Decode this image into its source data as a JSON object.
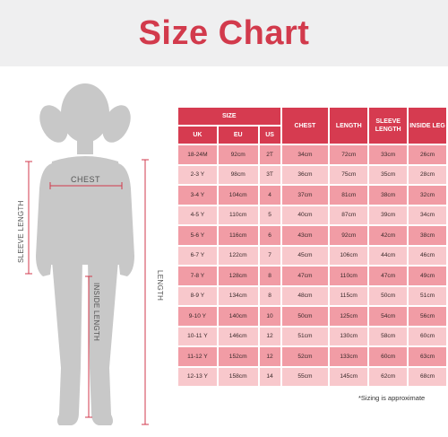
{
  "title": "Size Chart",
  "figure_labels": {
    "sleeve_length": "SLEEVE LENGTH",
    "chest": "CHEST",
    "inside_length": "INSIDE LENGTH",
    "length": "LENGTH"
  },
  "table": {
    "size_header": "SIZE",
    "sub_headers": [
      "UK",
      "EU",
      "US"
    ],
    "measure_headers": [
      "CHEST",
      "LENGTH",
      "SLEEVE LENGTH",
      "INSIDE LEG"
    ],
    "rows": [
      [
        "18-24M",
        "92cm",
        "2T",
        "34cm",
        "72cm",
        "33cm",
        "26cm"
      ],
      [
        "2-3 Y",
        "98cm",
        "3T",
        "36cm",
        "75cm",
        "35cm",
        "28cm"
      ],
      [
        "3-4 Y",
        "104cm",
        "4",
        "37cm",
        "81cm",
        "38cm",
        "32cm"
      ],
      [
        "4-5 Y",
        "110cm",
        "5",
        "40cm",
        "87cm",
        "39cm",
        "34cm"
      ],
      [
        "5-6 Y",
        "116cm",
        "6",
        "43cm",
        "92cm",
        "42cm",
        "38cm"
      ],
      [
        "6-7 Y",
        "122cm",
        "7",
        "45cm",
        "106cm",
        "44cm",
        "46cm"
      ],
      [
        "7-8 Y",
        "128cm",
        "8",
        "47cm",
        "110cm",
        "47cm",
        "49cm"
      ],
      [
        "8-9 Y",
        "134cm",
        "8",
        "48cm",
        "115cm",
        "50cm",
        "51cm"
      ],
      [
        "9-10 Y",
        "140cm",
        "10",
        "50cm",
        "125cm",
        "54cm",
        "56cm"
      ],
      [
        "10-11 Y",
        "146cm",
        "12",
        "51cm",
        "130cm",
        "58cm",
        "60cm"
      ],
      [
        "11-12 Y",
        "152cm",
        "12",
        "52cm",
        "133cm",
        "60cm",
        "63cm"
      ],
      [
        "12-13 Y",
        "158cm",
        "14",
        "55cm",
        "145cm",
        "62cm",
        "68cm"
      ]
    ]
  },
  "note": "*Sizing is approximate",
  "colors": {
    "title": "#d23a4c",
    "header": "#d63b50",
    "row_dark": "#f19ca5",
    "row_light": "#f8c8cc",
    "figure": "#c8c8c8"
  }
}
